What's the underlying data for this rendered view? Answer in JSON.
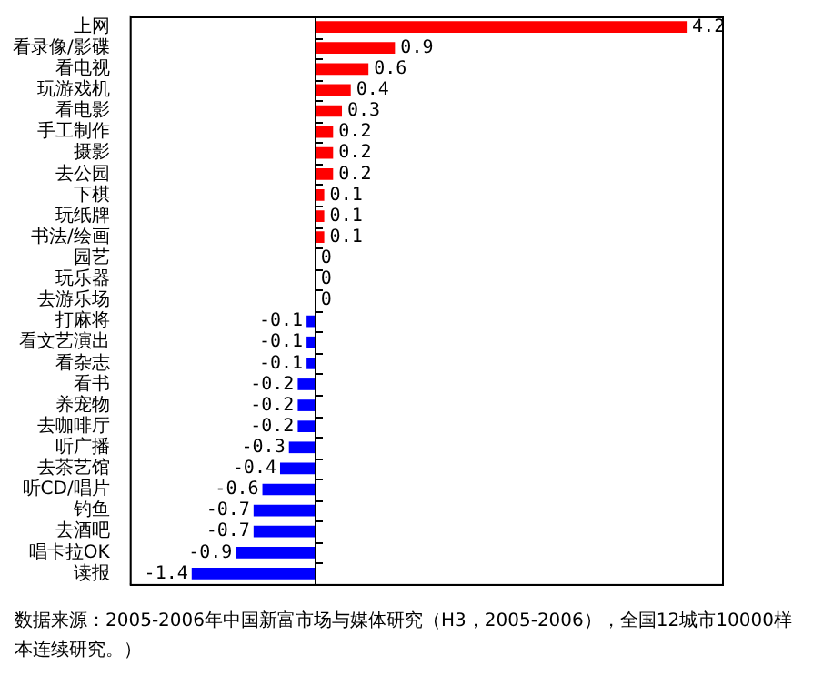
{
  "chart_data": {
    "type": "bar",
    "orientation": "horizontal",
    "categories": [
      "上网",
      "看录像/影碟",
      "看电视",
      "玩游戏机",
      "看电影",
      "手工制作",
      "摄影",
      "去公园",
      "下棋",
      "玩纸牌",
      "书法/绘画",
      "园艺",
      "玩乐器",
      "去游乐场",
      "打麻将",
      "看文艺演出",
      "看杂志",
      "看书",
      "养宠物",
      "去咖啡厅",
      "听广播",
      "去茶艺馆",
      "听CD/唱片",
      "钓鱼",
      "去酒吧",
      "唱卡拉OK",
      "读报"
    ],
    "values": [
      4.2,
      0.9,
      0.6,
      0.4,
      0.3,
      0.2,
      0.2,
      0.2,
      0.1,
      0.1,
      0.1,
      0,
      0,
      0,
      -0.1,
      -0.1,
      -0.1,
      -0.2,
      -0.2,
      -0.2,
      -0.3,
      -0.4,
      -0.6,
      -0.7,
      -0.7,
      -0.9,
      -1.4
    ],
    "colors": [
      "#ff0000",
      "#ff0000",
      "#ff0000",
      "#ff0000",
      "#ff0000",
      "#ff0000",
      "#ff0000",
      "#ff0000",
      "#ff0000",
      "#ff0000",
      "#ff0000",
      "#ff0000",
      "#ff0000",
      "#ff0000",
      "#0000ff",
      "#0000ff",
      "#0000ff",
      "#0000ff",
      "#0000ff",
      "#0000ff",
      "#0000ff",
      "#0000ff",
      "#0000ff",
      "#0000ff",
      "#0000ff",
      "#0000ff",
      "#0000ff"
    ],
    "xlim": [
      -2.1,
      4.6
    ],
    "data_labels": true,
    "grid": false,
    "legend": false,
    "tick_labels": "y",
    "annotations": [
      "数据来源：2005-2006年中国新富市场与媒体研究（H3，2005-2006），全国12城市10000样本连续研究。）"
    ]
  }
}
